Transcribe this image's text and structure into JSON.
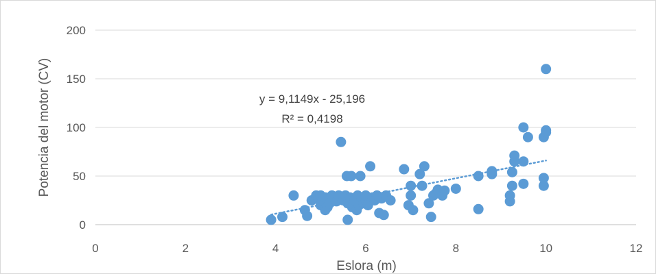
{
  "chart_data": {
    "type": "scatter",
    "title": "",
    "xlabel": "Eslora (m)",
    "ylabel": "Potencia del motor (CV)",
    "xlim": [
      0,
      12
    ],
    "ylim": [
      0,
      200
    ],
    "x_ticks": [
      "0",
      "2",
      "4",
      "6",
      "8",
      "10",
      "12"
    ],
    "y_ticks": [
      "0",
      "50",
      "100",
      "150",
      "200"
    ],
    "grid": "horizontal",
    "legend": "none",
    "series": [
      {
        "color": "#5b9bd5",
        "points": [
          [
            3.9,
            5
          ],
          [
            4.15,
            8
          ],
          [
            4.4,
            30
          ],
          [
            4.65,
            15
          ],
          [
            4.7,
            9
          ],
          [
            4.8,
            25
          ],
          [
            4.9,
            30
          ],
          [
            4.95,
            27
          ],
          [
            5.0,
            20
          ],
          [
            5.0,
            30
          ],
          [
            5.05,
            25
          ],
          [
            5.1,
            15
          ],
          [
            5.1,
            28
          ],
          [
            5.15,
            18
          ],
          [
            5.2,
            22
          ],
          [
            5.25,
            30
          ],
          [
            5.3,
            27
          ],
          [
            5.35,
            24
          ],
          [
            5.4,
            30
          ],
          [
            5.45,
            85
          ],
          [
            5.5,
            25
          ],
          [
            5.55,
            30
          ],
          [
            5.58,
            50
          ],
          [
            5.6,
            5
          ],
          [
            5.6,
            22
          ],
          [
            5.65,
            28
          ],
          [
            5.68,
            50
          ],
          [
            5.7,
            18
          ],
          [
            5.75,
            25
          ],
          [
            5.8,
            15
          ],
          [
            5.82,
            30
          ],
          [
            5.85,
            20
          ],
          [
            5.88,
            50
          ],
          [
            5.9,
            28
          ],
          [
            5.95,
            22
          ],
          [
            6.0,
            25
          ],
          [
            6.0,
            30
          ],
          [
            6.05,
            20
          ],
          [
            6.1,
            60
          ],
          [
            6.15,
            28
          ],
          [
            6.2,
            25
          ],
          [
            6.25,
            30
          ],
          [
            6.3,
            12
          ],
          [
            6.35,
            27
          ],
          [
            6.4,
            10
          ],
          [
            6.45,
            30
          ],
          [
            6.55,
            25
          ],
          [
            6.85,
            57
          ],
          [
            6.95,
            20
          ],
          [
            7.0,
            40
          ],
          [
            7.0,
            30
          ],
          [
            7.05,
            15
          ],
          [
            7.2,
            52
          ],
          [
            7.25,
            40
          ],
          [
            7.3,
            60
          ],
          [
            7.4,
            22
          ],
          [
            7.45,
            8
          ],
          [
            7.5,
            30
          ],
          [
            7.55,
            32
          ],
          [
            7.6,
            36
          ],
          [
            7.7,
            30
          ],
          [
            7.75,
            35
          ],
          [
            8.0,
            37
          ],
          [
            8.5,
            16
          ],
          [
            8.5,
            50
          ],
          [
            8.8,
            52
          ],
          [
            8.8,
            55
          ],
          [
            9.2,
            24
          ],
          [
            9.2,
            30
          ],
          [
            9.25,
            54
          ],
          [
            9.25,
            40
          ],
          [
            9.3,
            65
          ],
          [
            9.3,
            71
          ],
          [
            9.5,
            42
          ],
          [
            9.5,
            65
          ],
          [
            9.5,
            100
          ],
          [
            9.6,
            90
          ],
          [
            9.95,
            40
          ],
          [
            9.95,
            48
          ],
          [
            9.95,
            90
          ],
          [
            10.0,
            95
          ],
          [
            10.0,
            97
          ],
          [
            10.0,
            160
          ]
        ]
      }
    ],
    "trendline": {
      "type": "linear",
      "slope": 9.1149,
      "intercept": -25.196,
      "x_range": [
        3.9,
        10.0
      ],
      "style": "dotted",
      "equation_label": "y = 9,1149x - 25,196",
      "r2_label": "R² = 0,4198"
    }
  }
}
